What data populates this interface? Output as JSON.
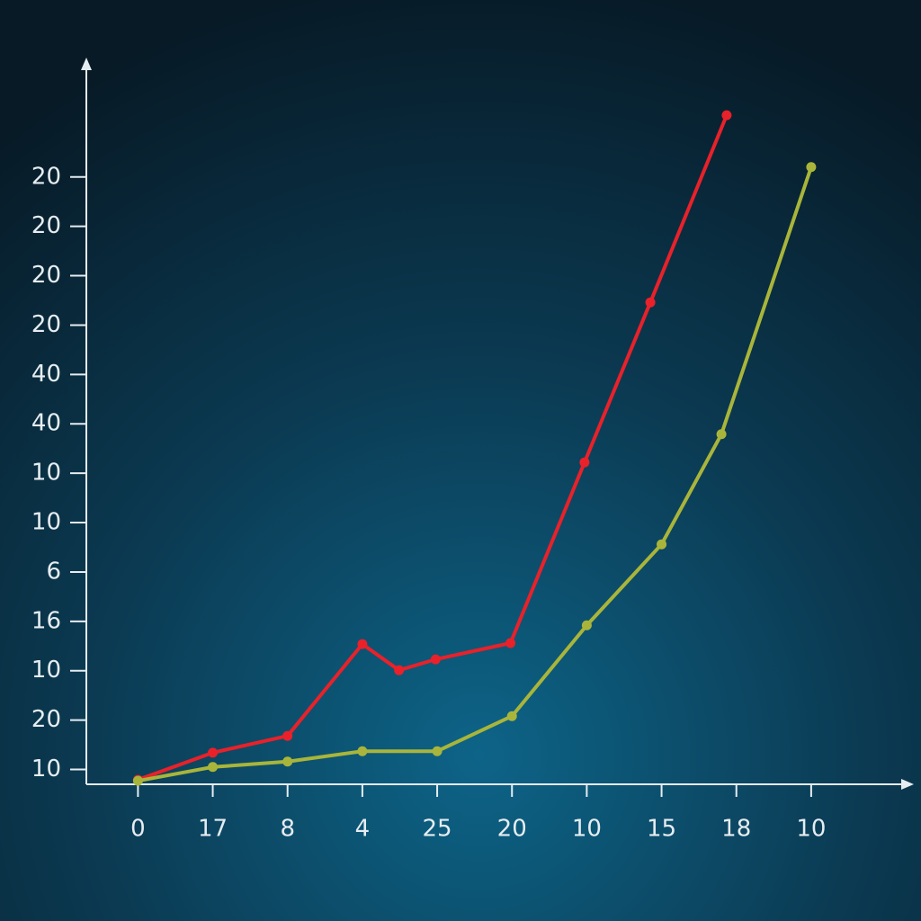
{
  "chart_data": {
    "type": "line",
    "xlim": [
      -0.69,
      10.36
    ],
    "xticks": [
      0,
      {
        "value": 1,
        "label": "17"
      },
      {
        "value": 2,
        "label": "8"
      },
      {
        "value": 3,
        "label": "4"
      },
      {
        "value": 4,
        "label": "25"
      },
      {
        "value": 5,
        "label": "20"
      },
      {
        "value": 6,
        "label": "10"
      },
      {
        "value": 7,
        "label": "15"
      },
      {
        "value": 8,
        "label": "18"
      },
      {
        "value": 9,
        "label": "10"
      }
    ],
    "ylim": [
      0.7,
      15.4
    ],
    "yticks": [
      {
        "value": 1,
        "label": "10"
      },
      {
        "value": 2,
        "label": "20"
      },
      {
        "value": 3,
        "label": "10"
      },
      {
        "value": 4,
        "label": "16"
      },
      {
        "value": 5,
        "label": "6"
      },
      {
        "value": 6,
        "label": "10"
      },
      {
        "value": 7,
        "label": "10"
      },
      {
        "value": 8,
        "label": "40"
      },
      {
        "value": 9,
        "label": "40"
      },
      {
        "value": 10,
        "label": "20"
      },
      {
        "value": 11,
        "label": "20"
      },
      {
        "value": 12,
        "label": "20"
      },
      {
        "value": 13,
        "label": "20"
      }
    ],
    "series": [
      {
        "color": "#e8212a",
        "x": [
          0,
          1,
          2,
          3,
          3.49,
          3.98,
          4.98,
          5.97,
          6.85,
          7.87
        ],
        "values": [
          0.79,
          1.34,
          1.68,
          3.54,
          3.01,
          3.23,
          3.56,
          7.22,
          10.46,
          14.25
        ]
      },
      {
        "color": "#a9b53a",
        "x": [
          0,
          1,
          2,
          3,
          4,
          5,
          6,
          7,
          7.8,
          9
        ],
        "values": [
          0.77,
          1.05,
          1.16,
          1.37,
          1.37,
          2.08,
          3.92,
          5.56,
          7.79,
          13.2
        ]
      }
    ]
  }
}
